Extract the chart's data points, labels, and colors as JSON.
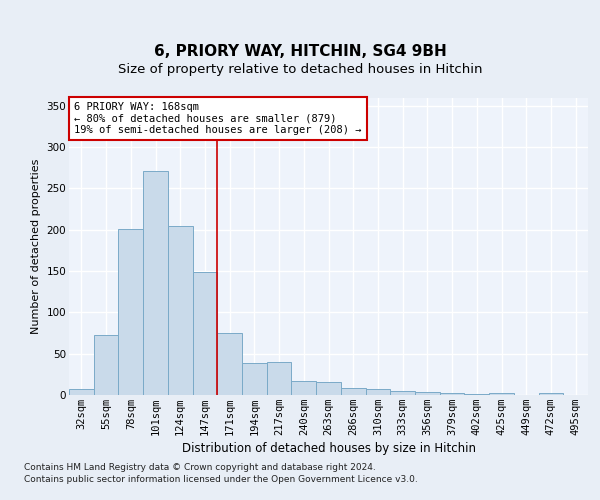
{
  "title": "6, PRIORY WAY, HITCHIN, SG4 9BH",
  "subtitle": "Size of property relative to detached houses in Hitchin",
  "xlabel": "Distribution of detached houses by size in Hitchin",
  "ylabel": "Number of detached properties",
  "categories": [
    "32sqm",
    "55sqm",
    "78sqm",
    "101sqm",
    "124sqm",
    "147sqm",
    "171sqm",
    "194sqm",
    "217sqm",
    "240sqm",
    "263sqm",
    "286sqm",
    "310sqm",
    "333sqm",
    "356sqm",
    "379sqm",
    "402sqm",
    "425sqm",
    "449sqm",
    "472sqm",
    "495sqm"
  ],
  "values": [
    7,
    73,
    201,
    271,
    205,
    149,
    75,
    39,
    40,
    17,
    16,
    8,
    7,
    5,
    4,
    2,
    1,
    2,
    0,
    3,
    0
  ],
  "bar_color": "#c9daea",
  "bar_edge_color": "#7aaac8",
  "property_line_x": 6,
  "property_line_color": "#cc0000",
  "annotation_text": "6 PRIORY WAY: 168sqm\n← 80% of detached houses are smaller (879)\n19% of semi-detached houses are larger (208) →",
  "annotation_box_color": "white",
  "annotation_box_edge_color": "#cc0000",
  "ylim": [
    0,
    360
  ],
  "yticks": [
    0,
    50,
    100,
    150,
    200,
    250,
    300,
    350
  ],
  "bg_color": "#e8eef6",
  "plot_bg_color": "#eef3fb",
  "grid_color": "#ffffff",
  "footer_line1": "Contains HM Land Registry data © Crown copyright and database right 2024.",
  "footer_line2": "Contains public sector information licensed under the Open Government Licence v3.0.",
  "title_fontsize": 11,
  "subtitle_fontsize": 9.5,
  "xlabel_fontsize": 8.5,
  "ylabel_fontsize": 8,
  "tick_fontsize": 7.5,
  "footer_fontsize": 6.5
}
